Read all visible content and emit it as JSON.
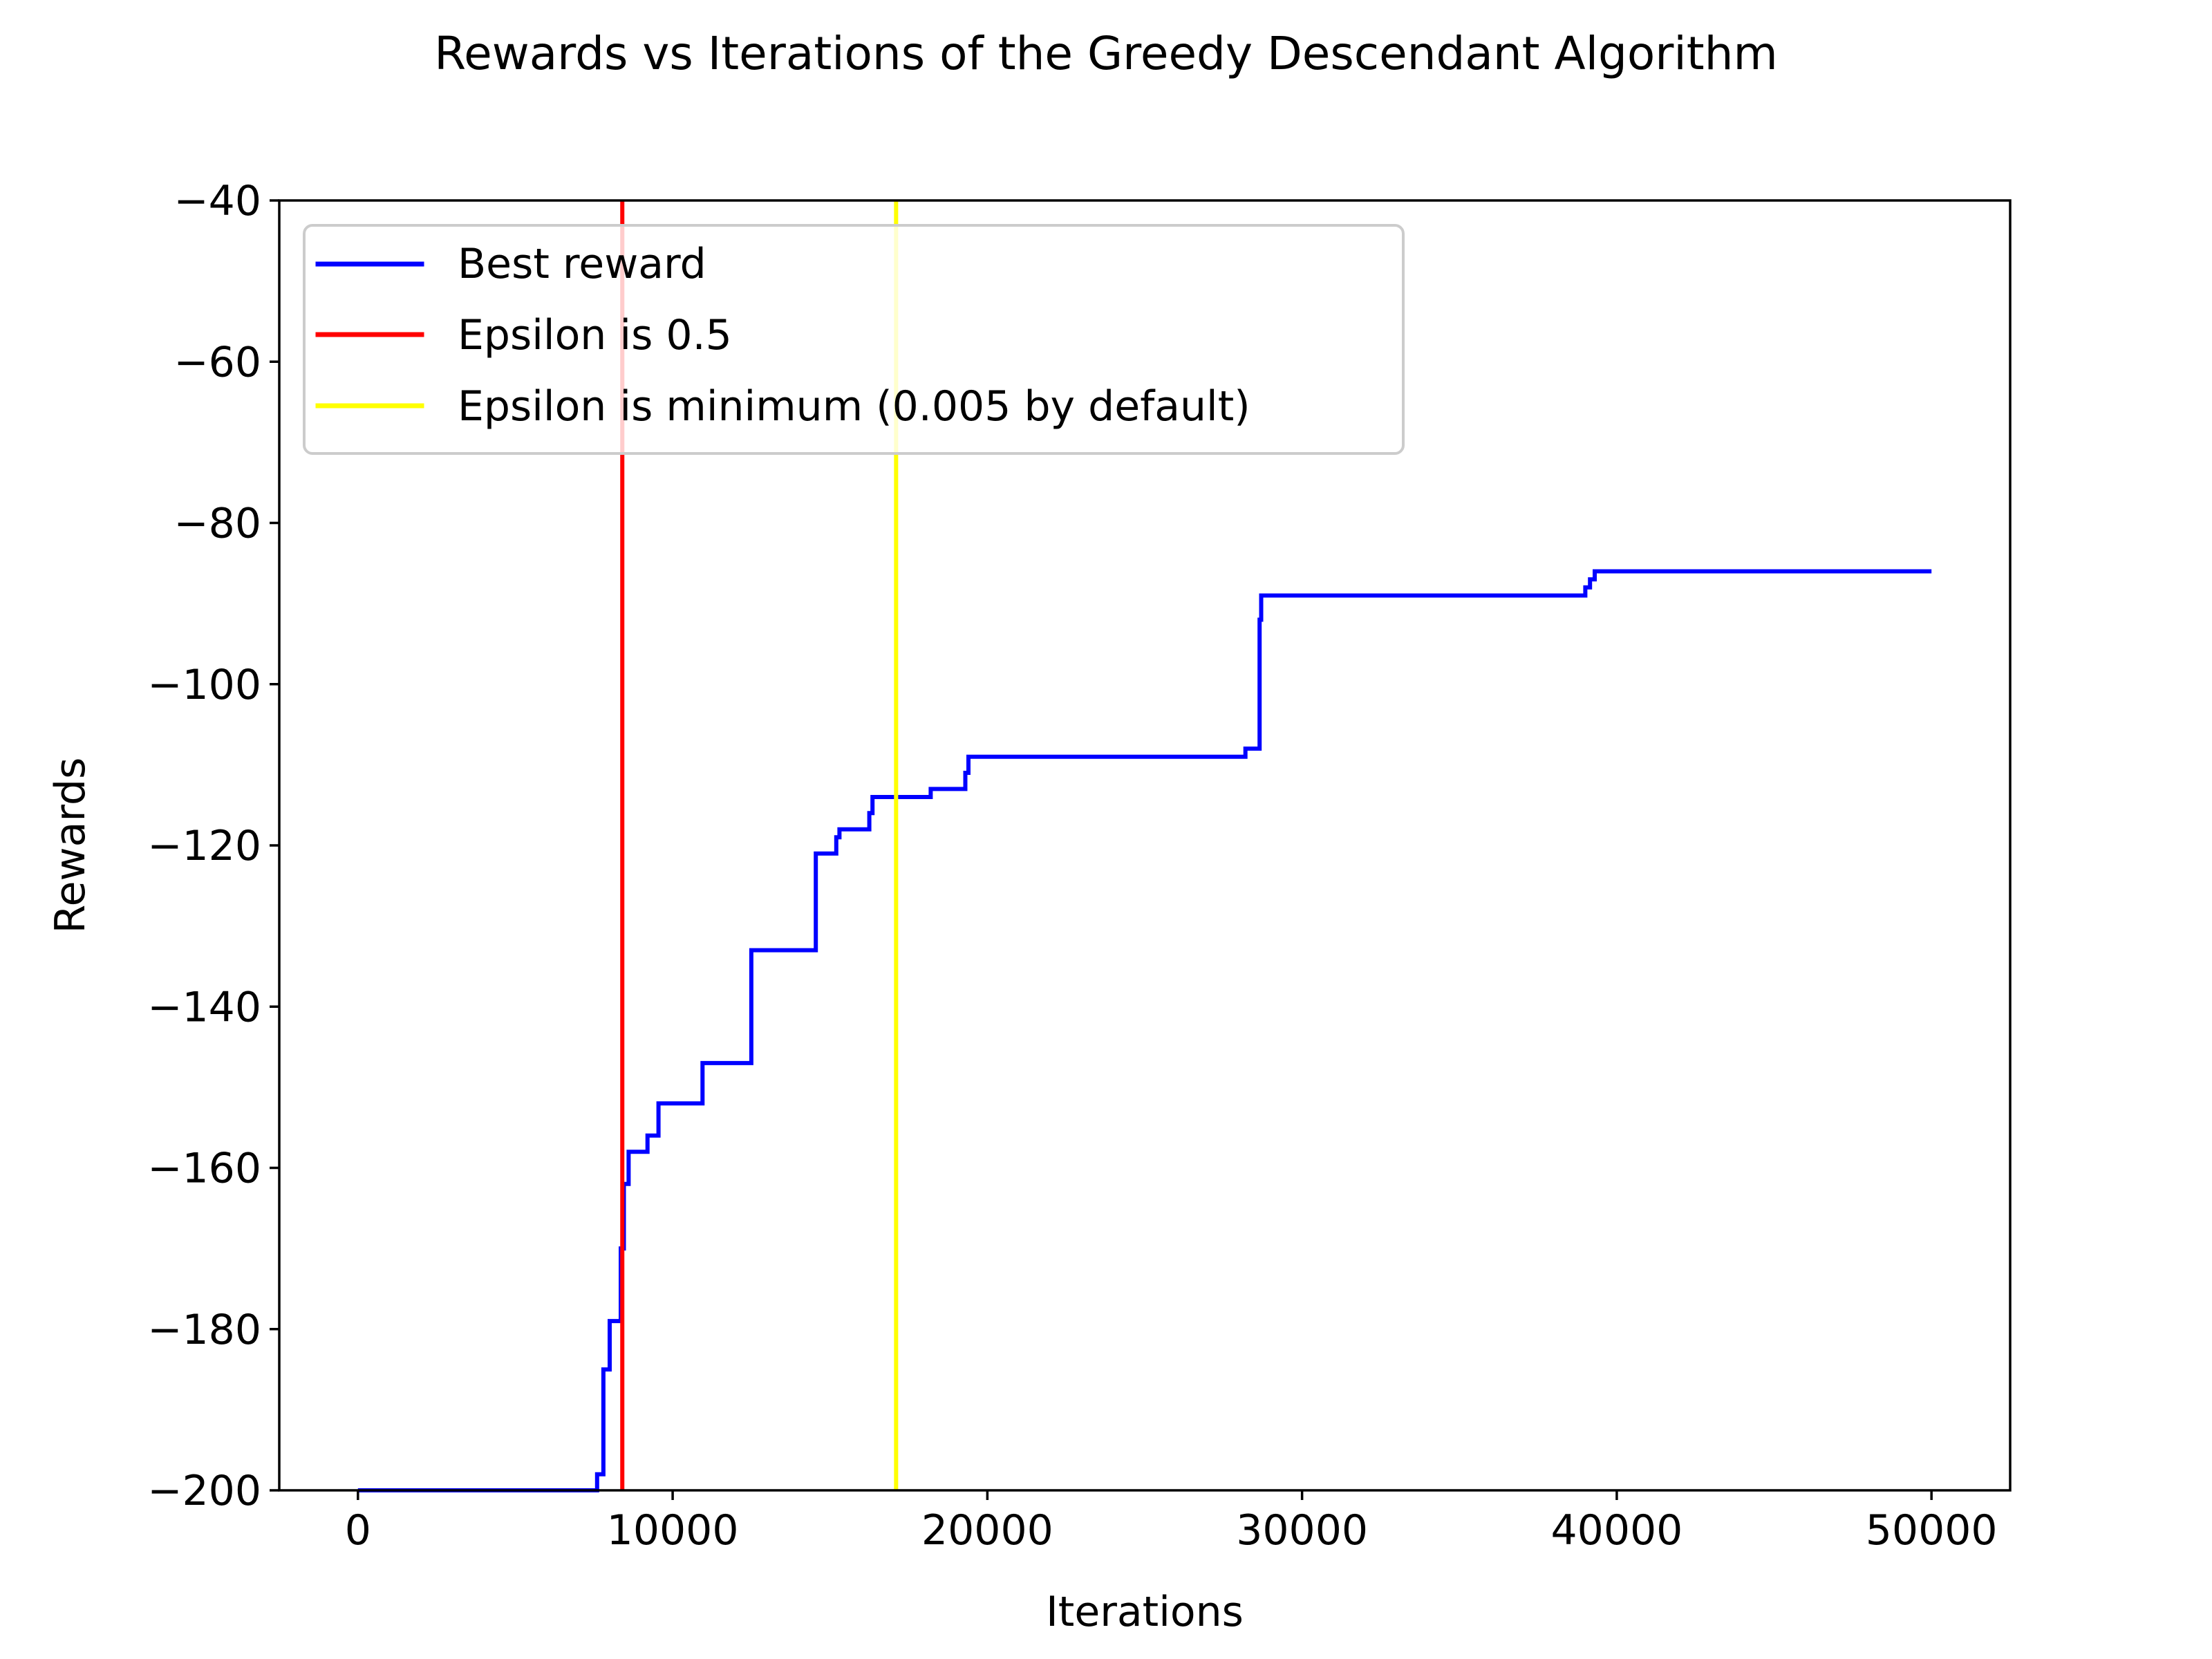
{
  "chart_data": {
    "type": "line",
    "title": "Rewards vs Iterations of the Greedy Descendant Algorithm",
    "xlabel": "Iterations",
    "ylabel": "Rewards",
    "xlim": [
      -2500,
      52500
    ],
    "ylim": [
      -200,
      -40
    ],
    "x_ticks": [
      0,
      10000,
      20000,
      30000,
      40000,
      50000
    ],
    "x_tick_labels": [
      "0",
      "10000",
      "20000",
      "30000",
      "40000",
      "50000"
    ],
    "y_ticks": [
      -40,
      -60,
      -80,
      -100,
      -120,
      -140,
      -160,
      -180,
      -200
    ],
    "y_tick_labels": [
      "−40",
      "−60",
      "−80",
      "−100",
      "−120",
      "−140",
      "−160",
      "−180",
      "−200"
    ],
    "grid": false,
    "legend": {
      "placement": "upper-left",
      "entries": [
        {
          "label": "Best reward",
          "color": "#0000ff"
        },
        {
          "label": "Epsilon is 0.5",
          "color": "#ff0000"
        },
        {
          "label": "Epsilon is minimum (0.005 by default)",
          "color": "#ffff00"
        }
      ]
    },
    "series": [
      {
        "name": "Best reward",
        "color": "#0000ff",
        "kind": "step",
        "points": [
          [
            0,
            -200
          ],
          [
            7600,
            -200
          ],
          [
            7600,
            -198
          ],
          [
            7800,
            -198
          ],
          [
            7800,
            -185
          ],
          [
            8000,
            -185
          ],
          [
            8000,
            -179
          ],
          [
            8350,
            -179
          ],
          [
            8350,
            -170
          ],
          [
            8450,
            -170
          ],
          [
            8450,
            -162
          ],
          [
            8600,
            -162
          ],
          [
            8600,
            -158
          ],
          [
            9200,
            -158
          ],
          [
            9200,
            -156
          ],
          [
            9550,
            -156
          ],
          [
            9550,
            -152
          ],
          [
            10950,
            -152
          ],
          [
            10950,
            -147
          ],
          [
            12500,
            -147
          ],
          [
            12500,
            -133
          ],
          [
            14550,
            -133
          ],
          [
            14550,
            -121
          ],
          [
            15200,
            -121
          ],
          [
            15200,
            -119
          ],
          [
            15300,
            -119
          ],
          [
            15300,
            -118
          ],
          [
            16250,
            -118
          ],
          [
            16250,
            -116
          ],
          [
            16350,
            -116
          ],
          [
            16350,
            -114
          ],
          [
            18200,
            -114
          ],
          [
            18200,
            -113
          ],
          [
            19300,
            -113
          ],
          [
            19300,
            -111
          ],
          [
            19400,
            -111
          ],
          [
            19400,
            -109
          ],
          [
            28200,
            -109
          ],
          [
            28200,
            -108
          ],
          [
            28650,
            -108
          ],
          [
            28650,
            -92
          ],
          [
            28700,
            -92
          ],
          [
            28700,
            -89
          ],
          [
            39000,
            -89
          ],
          [
            39000,
            -88
          ],
          [
            39150,
            -88
          ],
          [
            39150,
            -87
          ],
          [
            39300,
            -87
          ],
          [
            39300,
            -86
          ],
          [
            50000,
            -86
          ]
        ]
      }
    ],
    "vlines": [
      {
        "name": "Epsilon is 0.5",
        "x": 8400,
        "color": "#ff0000"
      },
      {
        "name": "Epsilon is minimum (0.005 by default)",
        "x": 17100,
        "color": "#ffff00"
      }
    ]
  }
}
